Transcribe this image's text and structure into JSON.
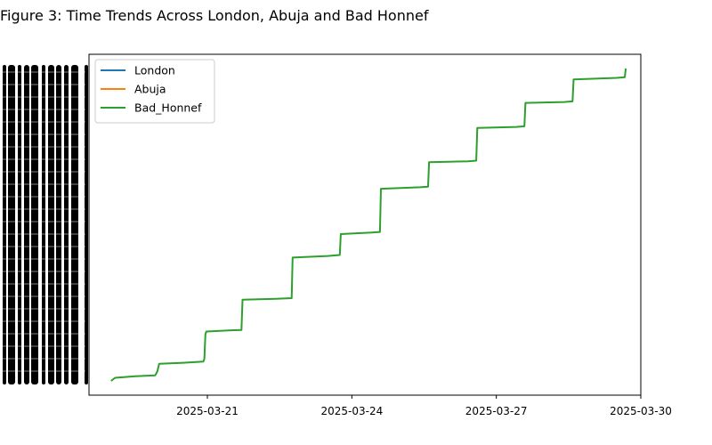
{
  "chart_data": {
    "type": "line",
    "title": "Figure 3: Time Trends Across London, Abuja and Bad Honnef",
    "xlabel": "",
    "ylabel": "",
    "x_axis": {
      "type": "date",
      "range": [
        "2025-03-18T13:00",
        "2025-03-30"
      ],
      "ticks": [
        "2025-03-21",
        "2025-03-24",
        "2025-03-27",
        "2025-03-30"
      ]
    },
    "y_axis": {
      "tick_labels_legible": false,
      "note": "tick labels overlap into an illegible black band"
    },
    "legend": {
      "placement": "top-left",
      "entries": [
        {
          "name": "London",
          "color": "#1f77b4"
        },
        {
          "name": "Abuja",
          "color": "#ff7f0e"
        },
        {
          "name": "Bad_Honnef",
          "color": "#2ca02c"
        }
      ]
    },
    "grid": false,
    "series": [
      {
        "name": "London",
        "color": "#1f77b4",
        "points": []
      },
      {
        "name": "Abuja",
        "color": "#ff7f0e",
        "points": []
      },
      {
        "name": "Bad_Honnef",
        "color": "#2ca02c",
        "y_scale": "relative 0-1",
        "points": [
          [
            "2025-03-19T00:00",
            0.0
          ],
          [
            "2025-03-19T02:00",
            0.01
          ],
          [
            "2025-03-19T12:00",
            0.015
          ],
          [
            "2025-03-19T22:00",
            0.018
          ],
          [
            "2025-03-19T23:00",
            0.03
          ],
          [
            "2025-03-20T00:00",
            0.055
          ],
          [
            "2025-03-20T12:00",
            0.058
          ],
          [
            "2025-03-20T22:00",
            0.062
          ],
          [
            "2025-03-20T22:30",
            0.07
          ],
          [
            "2025-03-20T23:00",
            0.15
          ],
          [
            "2025-03-20T23:30",
            0.158
          ],
          [
            "2025-03-21T12:00",
            0.162
          ],
          [
            "2025-03-21T17:00",
            0.163
          ],
          [
            "2025-03-21T17:30",
            0.26
          ],
          [
            "2025-03-22T10:00",
            0.263
          ],
          [
            "2025-03-22T18:00",
            0.265
          ],
          [
            "2025-03-22T18:30",
            0.395
          ],
          [
            "2025-03-23T12:00",
            0.4
          ],
          [
            "2025-03-23T18:00",
            0.403
          ],
          [
            "2025-03-23T18:30",
            0.47
          ],
          [
            "2025-03-24T10:00",
            0.475
          ],
          [
            "2025-03-24T14:00",
            0.477
          ],
          [
            "2025-03-24T14:30",
            0.615
          ],
          [
            "2025-03-25T10:00",
            0.62
          ],
          [
            "2025-03-25T14:00",
            0.622
          ],
          [
            "2025-03-25T14:30",
            0.7
          ],
          [
            "2025-03-26T10:00",
            0.703
          ],
          [
            "2025-03-26T14:00",
            0.705
          ],
          [
            "2025-03-26T14:30",
            0.81
          ],
          [
            "2025-03-27T10:00",
            0.813
          ],
          [
            "2025-03-27T14:00",
            0.815
          ],
          [
            "2025-03-27T14:30",
            0.89
          ],
          [
            "2025-03-28T10:00",
            0.893
          ],
          [
            "2025-03-28T14:00",
            0.895
          ],
          [
            "2025-03-28T14:30",
            0.965
          ],
          [
            "2025-03-29T12:00",
            0.97
          ],
          [
            "2025-03-29T16:00",
            0.972
          ],
          [
            "2025-03-29T16:30",
            1.0
          ]
        ]
      }
    ]
  }
}
